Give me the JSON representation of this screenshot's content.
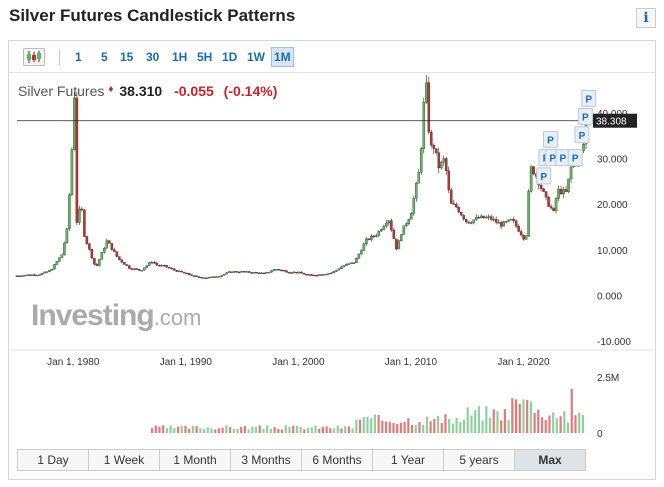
{
  "page": {
    "title": "Silver Futures Candlestick Patterns",
    "info_glyph": "i"
  },
  "toolbar": {
    "intervals": [
      "1",
      "5",
      "15",
      "30",
      "1H",
      "5H",
      "1D",
      "1W",
      "1M"
    ],
    "active_interval": "1M"
  },
  "quote": {
    "name": "Silver Futures",
    "price": "38.310",
    "change": "-0.055",
    "change_pct": "(-0.14%)"
  },
  "logo": {
    "main": "Investing",
    "domain": ".com"
  },
  "ranges": [
    "1 Day",
    "1 Week",
    "1 Month",
    "3 Months",
    "6 Months",
    "1 Year",
    "5 years",
    "Max"
  ],
  "active_range": "Max",
  "colors": {
    "up": "#5cb85c",
    "down": "#c9302c",
    "up_vol": "#8fd19e",
    "down_vol": "#e07b7b",
    "accent": "#1a6cb0"
  },
  "chart_data": {
    "type": "line",
    "y_ticks": [
      "40.000",
      "30.000",
      "20.000",
      "10.000",
      "0.000",
      "-10.000"
    ],
    "x_ticks": [
      "Jan 1, 1980",
      "Jan 1, 1990",
      "Jan 1, 2000",
      "Jan 1, 2010",
      "Jan 1, 2020"
    ],
    "ylim": [
      -10,
      40
    ],
    "xlim": [
      1975,
      2026
    ],
    "last_price_label": "38.308",
    "last_price": 38.308,
    "price_series": [
      [
        1975,
        4.3
      ],
      [
        1976,
        4.5
      ],
      [
        1977,
        4.6
      ],
      [
        1978,
        5.5
      ],
      [
        1979,
        9.0
      ],
      [
        1979.5,
        15.0
      ],
      [
        1979.9,
        33.0
      ],
      [
        1980.1,
        44.0
      ],
      [
        1980.3,
        16.0
      ],
      [
        1980.7,
        20.0
      ],
      [
        1981,
        13.0
      ],
      [
        1982,
        6.0
      ],
      [
        1983,
        12.0
      ],
      [
        1983.5,
        10.0
      ],
      [
        1984,
        8.0
      ],
      [
        1985,
        6.0
      ],
      [
        1986,
        5.5
      ],
      [
        1987,
        7.5
      ],
      [
        1987.5,
        6.5
      ],
      [
        1988,
        6.5
      ],
      [
        1989,
        5.5
      ],
      [
        1990,
        4.8
      ],
      [
        1991,
        4.0
      ],
      [
        1992,
        3.9
      ],
      [
        1993,
        4.3
      ],
      [
        1994,
        5.2
      ],
      [
        1995,
        5.2
      ],
      [
        1996,
        5.0
      ],
      [
        1997,
        4.8
      ],
      [
        1998,
        5.8
      ],
      [
        1999,
        5.2
      ],
      [
        2000,
        5.0
      ],
      [
        2001,
        4.4
      ],
      [
        2002,
        4.6
      ],
      [
        2003,
        5.0
      ],
      [
        2004,
        6.5
      ],
      [
        2005,
        7.3
      ],
      [
        2006,
        12.0
      ],
      [
        2007,
        13.5
      ],
      [
        2008,
        17.0
      ],
      [
        2008.8,
        9.5
      ],
      [
        2009,
        13.0
      ],
      [
        2010,
        18.0
      ],
      [
        2010.8,
        28.0
      ],
      [
        2011.3,
        48.0
      ],
      [
        2011.7,
        32.0
      ],
      [
        2012,
        33.0
      ],
      [
        2012.5,
        28.0
      ],
      [
        2013,
        30.0
      ],
      [
        2013.5,
        20.0
      ],
      [
        2014,
        19.5
      ],
      [
        2015,
        16.0
      ],
      [
        2016,
        17.0
      ],
      [
        2017,
        17.0
      ],
      [
        2018,
        15.5
      ],
      [
        2019,
        16.5
      ],
      [
        2020.2,
        12.0
      ],
      [
        2020.6,
        28.0
      ],
      [
        2021,
        27.0
      ],
      [
        2022,
        21.0
      ],
      [
        2022.7,
        18.0
      ],
      [
        2023,
        23.0
      ],
      [
        2023.8,
        22.5
      ],
      [
        2024.3,
        29.0
      ],
      [
        2024.9,
        30.0
      ],
      [
        2025.3,
        32.5
      ],
      [
        2025.6,
        38.3
      ]
    ],
    "annotation_marker": "P",
    "annotation_count": 9,
    "volume_ticks": [
      "2.5M",
      "0"
    ],
    "volume_ylim": [
      0,
      2.5
    ],
    "volume_unit": "M"
  }
}
